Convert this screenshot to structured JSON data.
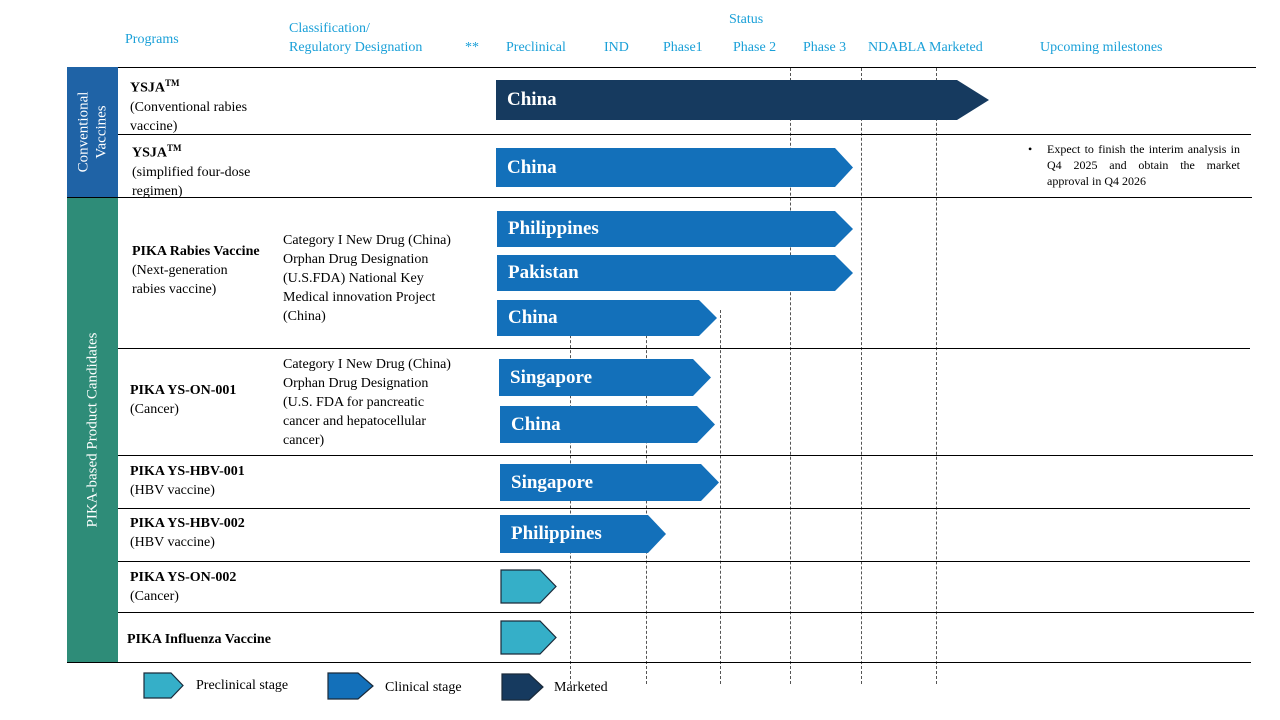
{
  "header": {
    "programs": "Programs",
    "classification_line1": "Classification/",
    "classification_line2": "Regulatory Designation",
    "stars": "**",
    "status": "Status",
    "stages": [
      "Preclinical",
      "IND",
      "Phase1",
      "Phase 2",
      "Phase 3",
      "NDABLA Marketed"
    ],
    "upcoming": "Upcoming milestones"
  },
  "groups": {
    "conventional": [
      "Conventional",
      "Vaccines"
    ],
    "pika": "PIKA-based  Product  Candidates"
  },
  "programs": [
    {
      "name": "YSJA",
      "tm": "TM",
      "sub1": "(Conventional rabies",
      "sub2": " vaccine)"
    },
    {
      "name": "YSJA",
      "tm": "TM",
      "sub1": "(simplified four-dose",
      "sub2": "regimen)"
    },
    {
      "name": "PIKA Rabies Vaccine",
      "sub1": "(Next-generation",
      "sub2": "rabies vaccine)"
    },
    {
      "name": "PIKA YS-ON-001",
      "sub1": "(Cancer)"
    },
    {
      "name": "PIKA YS-HBV-001",
      "sub1": "(HBV vaccine)"
    },
    {
      "name": "PIKA YS-HBV-002",
      "sub1": "(HBV vaccine)"
    },
    {
      "name": "PIKA YS-ON-002",
      "sub1": "(Cancer)"
    },
    {
      "name": "PIKA Influenza Vaccine"
    }
  ],
  "classifications": {
    "rabies": [
      "Category I New Drug  (China)",
      "Orphan Drug Designation",
      "(U.S.FDA) National Key",
      "Medical innovation Project",
      "(China)"
    ],
    "on001": [
      "Category I New Drug (China)",
      "Orphan Drug Designation",
      "(U.S. FDA for pancreatic",
      "cancer and hepatocellular",
      "cancer)"
    ]
  },
  "arrows": [
    {
      "label": "China",
      "type": "marketed"
    },
    {
      "label": "China",
      "type": "clinical"
    },
    {
      "label": "Philippines",
      "type": "clinical"
    },
    {
      "label": "Pakistan",
      "type": "clinical"
    },
    {
      "label": "China",
      "type": "clinical"
    },
    {
      "label": "Singapore",
      "type": "clinical"
    },
    {
      "label": "China",
      "type": "clinical"
    },
    {
      "label": "Singapore",
      "type": "clinical"
    },
    {
      "label": "Philippines",
      "type": "clinical"
    },
    {
      "label": "",
      "type": "preclinical"
    },
    {
      "label": "",
      "type": "preclinical"
    }
  ],
  "milestone": {
    "bullet": "•",
    "text": "Expect to finish the interim analysis in Q4 2025 and obtain the market approval in Q4 2026"
  },
  "legend": {
    "preclinical": "Preclinical stage",
    "clinical": "Clinical stage",
    "marketed": "Marketed"
  },
  "colors": {
    "header_text": "#1aa0d8",
    "conventional_sidebar": "#1f63a6",
    "pika_sidebar": "#2e8c78",
    "marketed": "#163a5f",
    "clinical": "#1370ba",
    "preclinical": "#35afc8"
  }
}
